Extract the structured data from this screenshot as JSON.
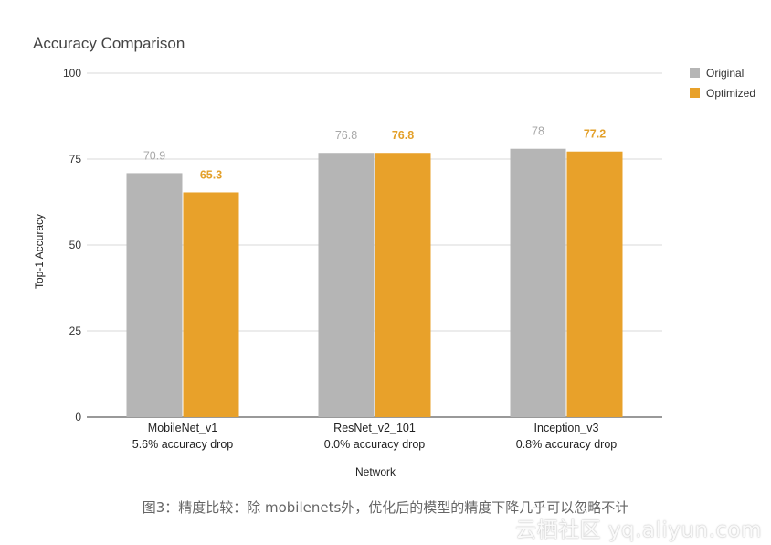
{
  "chart_data": {
    "type": "bar",
    "title": "Accuracy Comparison",
    "xlabel": "Network",
    "ylabel": "Top-1 Accuracy",
    "ylim": [
      0,
      100
    ],
    "yticks": [
      "0",
      "25",
      "50",
      "75",
      "100"
    ],
    "ytick_values": [
      0,
      25,
      50,
      75,
      100
    ],
    "grid": true,
    "legend_position": "top-right",
    "categories": [
      "MobileNet_v1",
      "ResNet_v2_101",
      "Inception_v3"
    ],
    "subtitles": [
      "5.6% accuracy drop",
      "0.0% accuracy drop",
      "0.8% accuracy drop"
    ],
    "series": [
      {
        "name": "Original",
        "color": "#b5b5b5",
        "label_color": "#a8a8a8",
        "values": [
          70.9,
          76.8,
          78
        ],
        "labels": [
          "70.9",
          "76.8",
          "78"
        ]
      },
      {
        "name": "Optimized",
        "color": "#e8a12a",
        "label_color": "#e3a02a",
        "values": [
          65.3,
          76.8,
          77.2
        ],
        "labels": [
          "65.3",
          "76.8",
          "77.2"
        ]
      }
    ]
  },
  "caption": "图3：精度比较：除 mobilenets外，优化后的模型的精度下降几乎可以忽略不计",
  "watermark": "云栖社区 yq.aliyun.com"
}
